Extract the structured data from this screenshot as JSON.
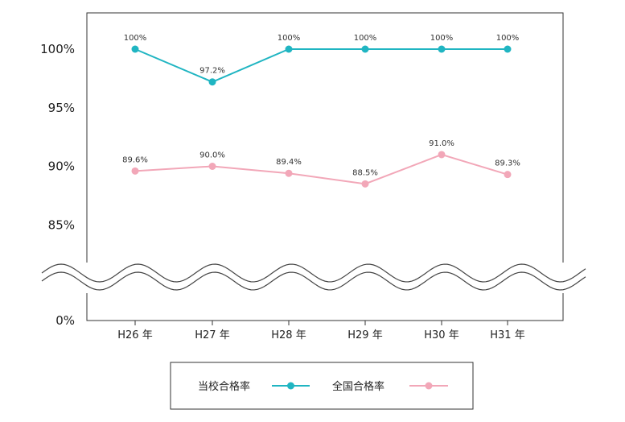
{
  "chart_data": {
    "type": "line",
    "categories": [
      "H26 年",
      "H27 年",
      "H28 年",
      "H29 年",
      "H30 年",
      "H31 年"
    ],
    "y_ticks": [
      "100%",
      "95%",
      "90%",
      "85%",
      "0%"
    ],
    "axis_break": {
      "from": 85,
      "to": 0
    },
    "ylim": [
      0,
      100
    ],
    "grid": false,
    "legend_position": "bottom",
    "series": [
      {
        "name": "当校合格率",
        "color": "#20b5c2",
        "values": [
          100,
          97.2,
          100,
          100,
          100,
          100
        ],
        "labels": [
          "100%",
          "97.2%",
          "100%",
          "100%",
          "100%",
          "100%"
        ]
      },
      {
        "name": "全国合格率",
        "color": "#f2a7b8",
        "values": [
          89.6,
          90.0,
          89.4,
          88.5,
          91.0,
          89.3
        ],
        "labels": [
          "89.6%",
          "90.0%",
          "89.4%",
          "88.5%",
          "91.0%",
          "89.3%"
        ]
      }
    ]
  }
}
